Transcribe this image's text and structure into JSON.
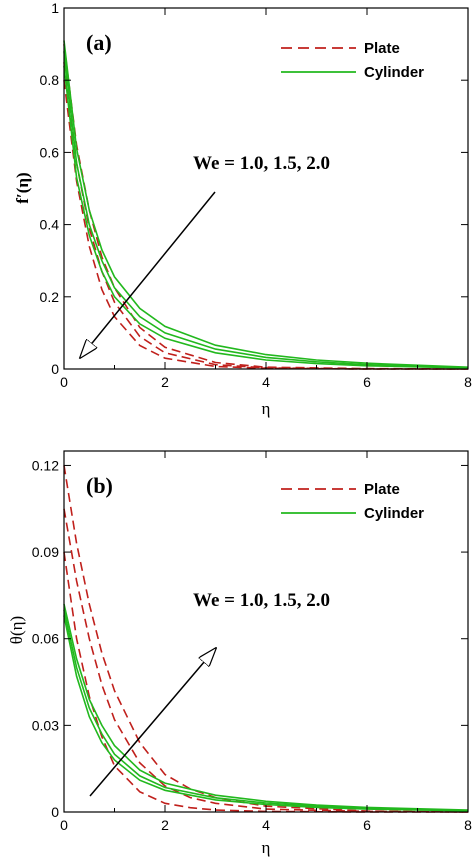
{
  "chart_data": [
    {
      "type": "line",
      "panel_label": "(a)",
      "xlabel": "η",
      "ylabel": "f′(η)",
      "xlim": [
        0,
        8
      ],
      "ylim": [
        0,
        1
      ],
      "xticks": [
        "0",
        "2",
        "4",
        "6",
        "8"
      ],
      "yticks": [
        "0",
        "0.2",
        "0.4",
        "0.6",
        "0.8",
        "1"
      ],
      "legend": {
        "placement": "top-right",
        "entries": [
          "Plate",
          "Cylinder"
        ]
      },
      "annotation": "We = 1.0, 1.5, 2.0",
      "arrow_direction": "down-left",
      "grid": false,
      "series": [
        {
          "group": "Plate",
          "style": "dashed",
          "color": "#c0201c",
          "We": 1.0,
          "x": [
            0,
            0.25,
            0.5,
            0.75,
            1,
            1.5,
            2,
            3,
            4,
            6,
            8
          ],
          "y": [
            0.8,
            0.52,
            0.34,
            0.22,
            0.145,
            0.065,
            0.03,
            0.007,
            0.002,
            0,
            0
          ]
        },
        {
          "group": "Plate",
          "style": "dashed",
          "color": "#c0201c",
          "We": 1.5,
          "x": [
            0,
            0.25,
            0.5,
            0.75,
            1,
            1.5,
            2,
            3,
            4,
            6,
            8
          ],
          "y": [
            0.85,
            0.57,
            0.39,
            0.27,
            0.185,
            0.09,
            0.045,
            0.012,
            0.003,
            0,
            0
          ]
        },
        {
          "group": "Plate",
          "style": "dashed",
          "color": "#c0201c",
          "We": 2.0,
          "x": [
            0,
            0.25,
            0.5,
            0.75,
            1,
            1.5,
            2,
            3,
            4,
            6,
            8
          ],
          "y": [
            0.9,
            0.62,
            0.44,
            0.31,
            0.225,
            0.115,
            0.06,
            0.018,
            0.005,
            0.001,
            0
          ]
        },
        {
          "group": "Cylinder",
          "style": "solid",
          "color": "#22b81e",
          "We": 1.0,
          "x": [
            0,
            0.25,
            0.5,
            0.75,
            1,
            1.5,
            2,
            3,
            4,
            5,
            6,
            8
          ],
          "y": [
            0.84,
            0.53,
            0.37,
            0.27,
            0.2,
            0.125,
            0.085,
            0.045,
            0.025,
            0.015,
            0.009,
            0.003
          ]
        },
        {
          "group": "Cylinder",
          "style": "solid",
          "color": "#22b81e",
          "We": 1.5,
          "x": [
            0,
            0.25,
            0.5,
            0.75,
            1,
            1.5,
            2,
            3,
            4,
            5,
            6,
            8
          ],
          "y": [
            0.88,
            0.57,
            0.4,
            0.3,
            0.225,
            0.145,
            0.1,
            0.055,
            0.032,
            0.02,
            0.012,
            0.004
          ]
        },
        {
          "group": "Cylinder",
          "style": "solid",
          "color": "#22b81e",
          "We": 2.0,
          "x": [
            0,
            0.25,
            0.5,
            0.75,
            1,
            1.5,
            2,
            3,
            4,
            5,
            6,
            8
          ],
          "y": [
            0.91,
            0.61,
            0.44,
            0.33,
            0.255,
            0.168,
            0.118,
            0.066,
            0.04,
            0.025,
            0.016,
            0.005
          ]
        }
      ]
    },
    {
      "type": "line",
      "panel_label": "(b)",
      "xlabel": "η",
      "ylabel": "θ(η)",
      "xlim": [
        0,
        8
      ],
      "ylim": [
        0,
        0.125
      ],
      "xticks": [
        "0",
        "2",
        "4",
        "6",
        "8"
      ],
      "yticks": [
        "0",
        "0.03",
        "0.06",
        "0.09",
        "0.12"
      ],
      "legend": {
        "placement": "top-right",
        "entries": [
          "Plate",
          "Cylinder"
        ]
      },
      "annotation": "We = 1.0, 1.5, 2.0",
      "arrow_direction": "up-right",
      "grid": false,
      "series": [
        {
          "group": "Plate",
          "style": "dashed",
          "color": "#c0201c",
          "We": 1.0,
          "x": [
            0,
            0.25,
            0.5,
            0.75,
            1,
            1.5,
            2,
            2.5,
            3,
            4,
            6,
            8
          ],
          "y": [
            0.09,
            0.06,
            0.04,
            0.026,
            0.016,
            0.007,
            0.003,
            0.0015,
            0.0007,
            0.0002,
            0,
            0
          ]
        },
        {
          "group": "Plate",
          "style": "dashed",
          "color": "#c0201c",
          "We": 1.5,
          "x": [
            0,
            0.25,
            0.5,
            0.75,
            1,
            1.5,
            2,
            2.5,
            3,
            4,
            6,
            8
          ],
          "y": [
            0.105,
            0.08,
            0.06,
            0.044,
            0.032,
            0.017,
            0.009,
            0.005,
            0.003,
            0.001,
            0.0002,
            0
          ]
        },
        {
          "group": "Plate",
          "style": "dashed",
          "color": "#c0201c",
          "We": 2.0,
          "x": [
            0,
            0.25,
            0.5,
            0.75,
            1,
            1.5,
            2,
            2.5,
            3,
            4,
            6,
            8
          ],
          "y": [
            0.12,
            0.093,
            0.072,
            0.055,
            0.042,
            0.024,
            0.013,
            0.008,
            0.005,
            0.002,
            0.0003,
            0
          ]
        },
        {
          "group": "Cylinder",
          "style": "solid",
          "color": "#22b81e",
          "We": 1.0,
          "x": [
            0,
            0.25,
            0.5,
            0.75,
            1,
            1.5,
            2,
            3,
            4,
            5,
            6,
            8
          ],
          "y": [
            0.068,
            0.047,
            0.033,
            0.024,
            0.018,
            0.011,
            0.0075,
            0.0042,
            0.0026,
            0.0016,
            0.001,
            0.0004
          ]
        },
        {
          "group": "Cylinder",
          "style": "solid",
          "color": "#22b81e",
          "We": 1.5,
          "x": [
            0,
            0.25,
            0.5,
            0.75,
            1,
            1.5,
            2,
            3,
            4,
            5,
            6,
            8
          ],
          "y": [
            0.07,
            0.05,
            0.036,
            0.027,
            0.02,
            0.0125,
            0.0085,
            0.0049,
            0.0031,
            0.002,
            0.0013,
            0.0005
          ]
        },
        {
          "group": "Cylinder",
          "style": "solid",
          "color": "#22b81e",
          "We": 2.0,
          "x": [
            0,
            0.25,
            0.5,
            0.75,
            1,
            1.5,
            2,
            3,
            4,
            5,
            6,
            8
          ],
          "y": [
            0.072,
            0.053,
            0.039,
            0.03,
            0.023,
            0.0145,
            0.01,
            0.0058,
            0.0037,
            0.0024,
            0.0016,
            0.0007
          ]
        }
      ]
    }
  ]
}
